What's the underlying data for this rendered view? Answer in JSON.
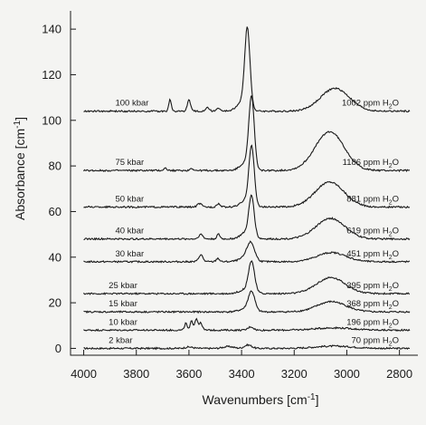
{
  "chart_data": {
    "type": "line",
    "xlabel": {
      "main": "Wavenumbers [cm",
      "sup": "-1",
      "tail": "]"
    },
    "ylabel": {
      "main": "Absorbance [cm",
      "sup": "-1",
      "tail": "]"
    },
    "xlim": [
      4050,
      2730
    ],
    "ylim": [
      -3,
      148
    ],
    "x_ticks": [
      4000,
      3800,
      3600,
      3400,
      3200,
      3000,
      2800
    ],
    "y_ticks": [
      0,
      20,
      40,
      60,
      80,
      100,
      120,
      140
    ],
    "series": [
      {
        "name": "2 kbar",
        "water": "70",
        "unit": " ppm H",
        "sub": "2",
        "tail": "O",
        "label_x": 3905,
        "baseline": 0,
        "peaks": [
          [
            3375,
            1.5,
            14
          ],
          [
            3450,
            0.8,
            20
          ],
          [
            3600,
            0.6,
            15
          ],
          [
            3050,
            1.0,
            70
          ]
        ]
      },
      {
        "name": "10 kbar",
        "water": "196",
        "unit": " ppm H",
        "sub": "2",
        "tail": "O",
        "label_x": 3905,
        "baseline": 8,
        "peaks": [
          [
            3612,
            3,
            5
          ],
          [
            3590,
            4,
            5
          ],
          [
            3572,
            5,
            6
          ],
          [
            3555,
            3,
            6
          ],
          [
            3365,
            1.5,
            10
          ],
          [
            3050,
            1.0,
            70
          ]
        ]
      },
      {
        "name": "15 kbar",
        "water": "368",
        "unit": " ppm H",
        "sub": "2",
        "tail": "O",
        "label_x": 3905,
        "baseline": 16,
        "peaks": [
          [
            3362,
            8,
            12
          ],
          [
            3380,
            1.5,
            25
          ],
          [
            3058,
            4.5,
            55
          ]
        ]
      },
      {
        "name": "25 kbar",
        "water": "395",
        "unit": " ppm H",
        "sub": "2",
        "tail": "O",
        "label_x": 3905,
        "baseline": 24,
        "peaks": [
          [
            3362,
            13,
            11
          ],
          [
            3380,
            2,
            25
          ],
          [
            3060,
            7,
            55
          ]
        ]
      },
      {
        "name": "30 kbar",
        "water": "451",
        "unit": " ppm H",
        "sub": "2",
        "tail": "O",
        "label_x": 3880,
        "baseline": 38,
        "peaks": [
          [
            3555,
            3,
            8
          ],
          [
            3490,
            1.5,
            6
          ],
          [
            3365,
            7,
            14
          ],
          [
            3380,
            2,
            25
          ],
          [
            3058,
            4,
            55
          ]
        ]
      },
      {
        "name": "40 kbar",
        "water": "619",
        "unit": " ppm H",
        "sub": "2",
        "tail": "O",
        "label_x": 3880,
        "baseline": 48,
        "peaks": [
          [
            3555,
            2,
            8
          ],
          [
            3488,
            2,
            6
          ],
          [
            3362,
            17,
            10
          ],
          [
            3380,
            3,
            22
          ],
          [
            3062,
            9,
            55
          ]
        ]
      },
      {
        "name": "50 kbar",
        "water": "881",
        "unit": " ppm H",
        "sub": "2",
        "tail": "O",
        "label_x": 3880,
        "baseline": 62,
        "peaks": [
          [
            3560,
            1.5,
            8
          ],
          [
            3488,
            1.5,
            6
          ],
          [
            3362,
            25,
            10
          ],
          [
            3380,
            3,
            22
          ],
          [
            3065,
            11,
            55
          ]
        ]
      },
      {
        "name": "75 kbar",
        "water": "1186",
        "unit": " ppm H",
        "sub": "2",
        "tail": "O",
        "label_x": 3880,
        "baseline": 78,
        "peaks": [
          [
            3690,
            1,
            6
          ],
          [
            3590,
            1,
            6
          ],
          [
            3362,
            30,
            10
          ],
          [
            3380,
            4,
            22
          ],
          [
            3065,
            17,
            55
          ]
        ]
      },
      {
        "name": "100 kbar",
        "water": "1002",
        "unit": " ppm H",
        "sub": "2",
        "tail": "O",
        "label_x": 3880,
        "baseline": 104,
        "peaks": [
          [
            3672,
            5,
            5
          ],
          [
            3600,
            5,
            6
          ],
          [
            3530,
            1.5,
            8
          ],
          [
            3488,
            1.5,
            6
          ],
          [
            3378,
            34,
            10
          ],
          [
            3395,
            4,
            22
          ],
          [
            3045,
            10,
            55
          ]
        ]
      }
    ]
  }
}
